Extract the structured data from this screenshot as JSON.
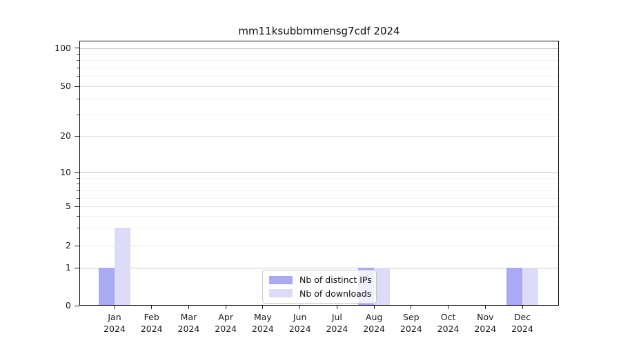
{
  "title": "mm11ksubbmmensg7cdf 2024",
  "chart_data": {
    "type": "bar",
    "title": "mm11ksubbmmensg7cdf 2024",
    "categories": [
      {
        "month": "Jan",
        "year": "2024"
      },
      {
        "month": "Feb",
        "year": "2024"
      },
      {
        "month": "Mar",
        "year": "2024"
      },
      {
        "month": "Apr",
        "year": "2024"
      },
      {
        "month": "May",
        "year": "2024"
      },
      {
        "month": "Jun",
        "year": "2024"
      },
      {
        "month": "Jul",
        "year": "2024"
      },
      {
        "month": "Aug",
        "year": "2024"
      },
      {
        "month": "Sep",
        "year": "2024"
      },
      {
        "month": "Oct",
        "year": "2024"
      },
      {
        "month": "Nov",
        "year": "2024"
      },
      {
        "month": "Dec",
        "year": "2024"
      }
    ],
    "series": [
      {
        "name": "Nb of distinct IPs",
        "color": "#a9a9f4",
        "values": [
          1,
          0,
          0,
          0,
          0,
          0,
          0,
          1,
          0,
          0,
          0,
          1
        ]
      },
      {
        "name": "Nb of downloads",
        "color": "#dcdcf9",
        "values": [
          3,
          0,
          0,
          0,
          0,
          0,
          0,
          1,
          0,
          0,
          0,
          1
        ]
      }
    ],
    "yscale": "symlog",
    "ylim": [
      0,
      115
    ],
    "ytick_labels": [
      "0",
      "1",
      "2",
      "5",
      "10",
      "20",
      "50",
      "100"
    ],
    "ytick_values": [
      0,
      1,
      2,
      5,
      10,
      20,
      50,
      100
    ],
    "ytick_minor_values": [
      3,
      4,
      6,
      7,
      8,
      9,
      30,
      40,
      60,
      70,
      80,
      90
    ],
    "grid": true,
    "legend_position": "lower center"
  },
  "legend": {
    "items": [
      {
        "label": "Nb of distinct IPs",
        "color": "#a9a9f4"
      },
      {
        "label": "Nb of downloads",
        "color": "#dcdcf9"
      }
    ]
  }
}
